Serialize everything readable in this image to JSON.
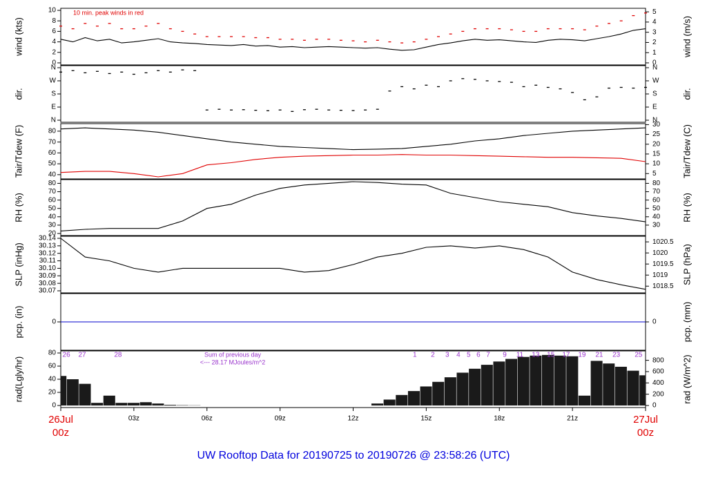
{
  "title": "UW Rooftop Data for 20190725  to  20190726 @ 23:58:26  (UTC)",
  "x_axis": {
    "xlim": [
      0,
      24
    ],
    "xticks": [
      {
        "value": 3,
        "label": "03z"
      },
      {
        "value": 6,
        "label": "06z"
      },
      {
        "value": 9,
        "label": "09z"
      },
      {
        "value": 12,
        "label": "12z"
      },
      {
        "value": 15,
        "label": "15z"
      },
      {
        "value": 18,
        "label": "18z"
      },
      {
        "value": 21,
        "label": "21z"
      }
    ],
    "end_labels": [
      {
        "value": 0,
        "label": "26Jul",
        "sublabel": "00z"
      },
      {
        "value": 24,
        "label": "27Jul",
        "sublabel": "00z"
      }
    ],
    "end_color": "#e00000",
    "title_color": "#0000dd"
  },
  "chart_data": [
    {
      "type": "line",
      "ylabel": "wind (kts)",
      "y2label": "wind (m/s)",
      "annotation": "10 min. peak winds in red",
      "annotation_color": "#e00000",
      "x": [
        0,
        0.5,
        1,
        1.5,
        2,
        2.5,
        3,
        3.5,
        4,
        4.5,
        5,
        5.5,
        6,
        6.5,
        7,
        7.5,
        8,
        8.5,
        9,
        9.5,
        10,
        10.5,
        11,
        11.5,
        12,
        12.5,
        13,
        13.5,
        14,
        14.5,
        15,
        15.5,
        16,
        16.5,
        17,
        17.5,
        18,
        18.5,
        19,
        19.5,
        20,
        20.5,
        21,
        21.5,
        22,
        22.5,
        23,
        23.5,
        24
      ],
      "series": [
        {
          "name": "wind",
          "color": "#000000",
          "mode": "line",
          "values": [
            4.5,
            4,
            4.8,
            4.2,
            4.5,
            3.8,
            4,
            4.3,
            4.6,
            4,
            3.8,
            3.7,
            3.5,
            3.4,
            3.3,
            3.5,
            3.2,
            3.3,
            3,
            3.1,
            2.9,
            3,
            3.1,
            3,
            2.9,
            2.8,
            2.9,
            2.6,
            2.4,
            2.5,
            3,
            3.5,
            3.8,
            4.2,
            4.5,
            4.3,
            4.4,
            4.2,
            4,
            3.9,
            4.3,
            4.5,
            4.4,
            4.2,
            4.6,
            5,
            5.5,
            6.2,
            6.5
          ]
        },
        {
          "name": "peak",
          "color": "#e00000",
          "mode": "points",
          "values": [
            7,
            6.5,
            7.5,
            7,
            7.5,
            6.5,
            6.5,
            7,
            7.5,
            6.5,
            6,
            5.5,
            5,
            5,
            5,
            5,
            4.8,
            4.8,
            4.5,
            4.5,
            4.3,
            4.5,
            4.5,
            4.3,
            4.2,
            4,
            4.3,
            4,
            3.8,
            4,
            4.5,
            5,
            5.5,
            6,
            6.5,
            6.5,
            6.5,
            6.3,
            6,
            6,
            6.5,
            6.5,
            6.5,
            6.3,
            7,
            7.5,
            8,
            9,
            9.5
          ]
        }
      ],
      "ylim": [
        0,
        10
      ],
      "yticks": [
        0,
        2,
        4,
        6,
        8,
        10
      ],
      "y2lim": [
        0,
        5.144
      ],
      "y2ticks": [
        0,
        1,
        2,
        3,
        4,
        5
      ]
    },
    {
      "type": "scatter",
      "ylabel": "dir.",
      "y2label": "dir.",
      "x": [
        0,
        0.5,
        1,
        1.5,
        2,
        2.5,
        3,
        3.5,
        4,
        4.5,
        5,
        5.5,
        6,
        6.5,
        7,
        7.5,
        8,
        8.5,
        9,
        9.5,
        10,
        10.5,
        11,
        11.5,
        12,
        12.5,
        13,
        13.5,
        14,
        14.5,
        15,
        15.5,
        16,
        16.5,
        17,
        17.5,
        18,
        18.5,
        19,
        19.5,
        20,
        20.5,
        21,
        21.5,
        22,
        22.5,
        23,
        23.5,
        24
      ],
      "series": [
        {
          "name": "direction",
          "color": "#000000",
          "mode": "points",
          "values": [
            330,
            340,
            325,
            335,
            320,
            330,
            315,
            325,
            340,
            330,
            345,
            340,
            70,
            75,
            70,
            72,
            68,
            65,
            70,
            60,
            72,
            75,
            70,
            68,
            66,
            70,
            75,
            200,
            230,
            215,
            240,
            230,
            270,
            285,
            280,
            270,
            265,
            260,
            230,
            240,
            225,
            215,
            190,
            140,
            160,
            220,
            225,
            220,
            225
          ]
        }
      ],
      "ylim": [
        0,
        360
      ],
      "yticks": [
        {
          "value": 0,
          "label": "N"
        },
        {
          "value": 90,
          "label": "E"
        },
        {
          "value": 180,
          "label": "S"
        },
        {
          "value": 270,
          "label": "W"
        },
        {
          "value": 360,
          "label": "N"
        }
      ],
      "y2lim": [
        0,
        360
      ],
      "y2ticks": [
        {
          "value": 0,
          "label": "N"
        },
        {
          "value": 90,
          "label": "E"
        },
        {
          "value": 180,
          "label": "S"
        },
        {
          "value": 270,
          "label": "W"
        },
        {
          "value": 360,
          "label": "N"
        }
      ]
    },
    {
      "type": "line",
      "ylabel": "Tair/Tdew (F)",
      "y2label": "Tair/Tdew (C)",
      "x": [
        0,
        1,
        2,
        3,
        4,
        5,
        6,
        7,
        8,
        9,
        10,
        11,
        12,
        13,
        14,
        15,
        16,
        17,
        18,
        19,
        20,
        21,
        22,
        23,
        24
      ],
      "series": [
        {
          "name": "Tair",
          "color": "#000000",
          "mode": "line",
          "values": [
            82,
            83,
            82,
            81,
            79,
            76,
            73,
            70,
            68,
            66,
            65,
            64,
            63,
            63.5,
            64,
            66,
            68,
            71,
            73,
            76,
            78,
            80,
            81,
            82,
            83
          ]
        },
        {
          "name": "Tdew",
          "color": "#e00000",
          "mode": "line",
          "values": [
            42,
            43,
            43,
            41,
            38,
            41,
            49,
            51,
            54,
            56,
            57,
            57.5,
            58,
            58,
            58.5,
            58,
            58,
            57.5,
            57,
            56.5,
            56,
            56,
            55.5,
            55,
            52
          ]
        }
      ],
      "ylim": [
        38,
        85
      ],
      "yticks": [
        40,
        50,
        60,
        70,
        80
      ],
      "y2lim": [
        3.33,
        29.44
      ],
      "y2ticks": [
        5,
        10,
        15,
        20,
        25,
        30
      ]
    },
    {
      "type": "line",
      "ylabel": "RH (%)",
      "y2label": "RH (%)",
      "x": [
        0,
        1,
        2,
        3,
        4,
        5,
        6,
        7,
        8,
        9,
        10,
        11,
        12,
        13,
        14,
        15,
        16,
        17,
        18,
        19,
        20,
        21,
        22,
        23,
        24
      ],
      "series": [
        {
          "name": "RH",
          "color": "#000000",
          "mode": "line",
          "values": [
            23,
            25,
            26,
            26,
            26,
            35,
            50,
            55,
            66,
            74,
            78,
            80,
            82,
            81,
            79,
            78,
            68,
            63,
            58,
            55,
            52,
            45,
            41,
            38,
            34
          ]
        }
      ],
      "ylim": [
        20,
        82
      ],
      "yticks": [
        20,
        30,
        40,
        50,
        60,
        70,
        80
      ],
      "y2lim": [
        20,
        82
      ],
      "y2ticks": [
        30,
        40,
        50,
        60,
        70,
        80
      ]
    },
    {
      "type": "line",
      "ylabel": "SLP (inHg)",
      "y2label": "SLP (hPa)",
      "x": [
        0,
        1,
        2,
        3,
        4,
        5,
        6,
        7,
        8,
        9,
        10,
        11,
        12,
        13,
        14,
        15,
        16,
        17,
        18,
        19,
        20,
        21,
        22,
        23,
        24
      ],
      "series": [
        {
          "name": "SLP",
          "color": "#000000",
          "mode": "line",
          "values": [
            30.14,
            30.115,
            30.11,
            30.1,
            30.095,
            30.1,
            30.1,
            30.1,
            30.1,
            30.1,
            30.095,
            30.097,
            30.105,
            30.115,
            30.12,
            30.128,
            30.13,
            30.127,
            30.13,
            30.125,
            30.115,
            30.095,
            30.085,
            30.078,
            30.072
          ]
        }
      ],
      "ylim": [
        30.07,
        30.14
      ],
      "yticks": [
        30.07,
        30.08,
        30.09,
        {
          "value": 30.1,
          "label": "30.10"
        },
        30.11,
        30.12,
        30.13,
        30.14
      ],
      "y2lim": [
        1018.29,
        1020.66
      ],
      "y2ticks": [
        1018.5,
        1019,
        1019.5,
        1020,
        1020.5
      ]
    },
    {
      "type": "line",
      "ylabel": "pcp. (in)",
      "y2label": "pcp. (mm)",
      "x": [
        0,
        24
      ],
      "series": [
        {
          "name": "pcp",
          "color": "#0000cc",
          "mode": "line",
          "values": [
            0,
            0
          ]
        }
      ],
      "ylim": [
        -1,
        1
      ],
      "yticks": [
        0
      ],
      "y2lim": [
        -25.4,
        25.4
      ],
      "y2ticks": [
        0
      ]
    },
    {
      "type": "bar",
      "ylabel": "rad(Lgly/hr)",
      "y2label": "rad (W/m^2)",
      "label_color": "#9933cc",
      "sum_note": [
        "Sum of previous day",
        "<--- 28.17 MJoules/m^2"
      ],
      "hour_labels": [
        {
          "x": 0.23,
          "text": "26"
        },
        {
          "x": 0.88,
          "text": "27"
        },
        {
          "x": 2.35,
          "text": "28"
        },
        {
          "x": 14.53,
          "text": "1"
        },
        {
          "x": 15.27,
          "text": "2"
        },
        {
          "x": 15.86,
          "text": "3"
        },
        {
          "x": 16.32,
          "text": "4"
        },
        {
          "x": 16.74,
          "text": "5"
        },
        {
          "x": 17.14,
          "text": "6"
        },
        {
          "x": 17.54,
          "text": "7"
        },
        {
          "x": 18.22,
          "text": "9"
        },
        {
          "x": 18.84,
          "text": "11"
        },
        {
          "x": 19.49,
          "text": "13"
        },
        {
          "x": 20.11,
          "text": "15"
        },
        {
          "x": 20.74,
          "text": "17"
        },
        {
          "x": 21.39,
          "text": "19"
        },
        {
          "x": 22.1,
          "text": "21"
        },
        {
          "x": 22.8,
          "text": "23"
        },
        {
          "x": 23.71,
          "text": "25"
        }
      ],
      "x": [
        0,
        0.5,
        1,
        1.5,
        2,
        2.5,
        3,
        3.5,
        4,
        4.5,
        5,
        5.5,
        6,
        6.5,
        7,
        7.5,
        8,
        8.5,
        9,
        9.5,
        10,
        10.5,
        11,
        11.5,
        12,
        12.5,
        13,
        13.5,
        14,
        14.5,
        15,
        15.5,
        16,
        16.5,
        17,
        17.5,
        18,
        18.5,
        19,
        19.5,
        20,
        20.5,
        21,
        21.5,
        22,
        22.5,
        23,
        23.5,
        24
      ],
      "series": [
        {
          "name": "radiation",
          "color": "#1a1a1a",
          "mode": "bar",
          "values": [
            45,
            40,
            33,
            4,
            15,
            4,
            4,
            5,
            3,
            1,
            0.5,
            0.3,
            0,
            0,
            0,
            0,
            0,
            0,
            0,
            0,
            0,
            0,
            0,
            0,
            0,
            0,
            3,
            9,
            16,
            22,
            29,
            36,
            43,
            50,
            56,
            62,
            67,
            71,
            74,
            76,
            77,
            76,
            75,
            15,
            68,
            64,
            59,
            53,
            46
          ]
        }
      ],
      "ylim": [
        0,
        80
      ],
      "yticks": [
        0,
        20,
        40,
        60,
        80
      ],
      "y2lim": [
        0,
        930
      ],
      "y2ticks": [
        0,
        200,
        400,
        600,
        800
      ]
    }
  ]
}
